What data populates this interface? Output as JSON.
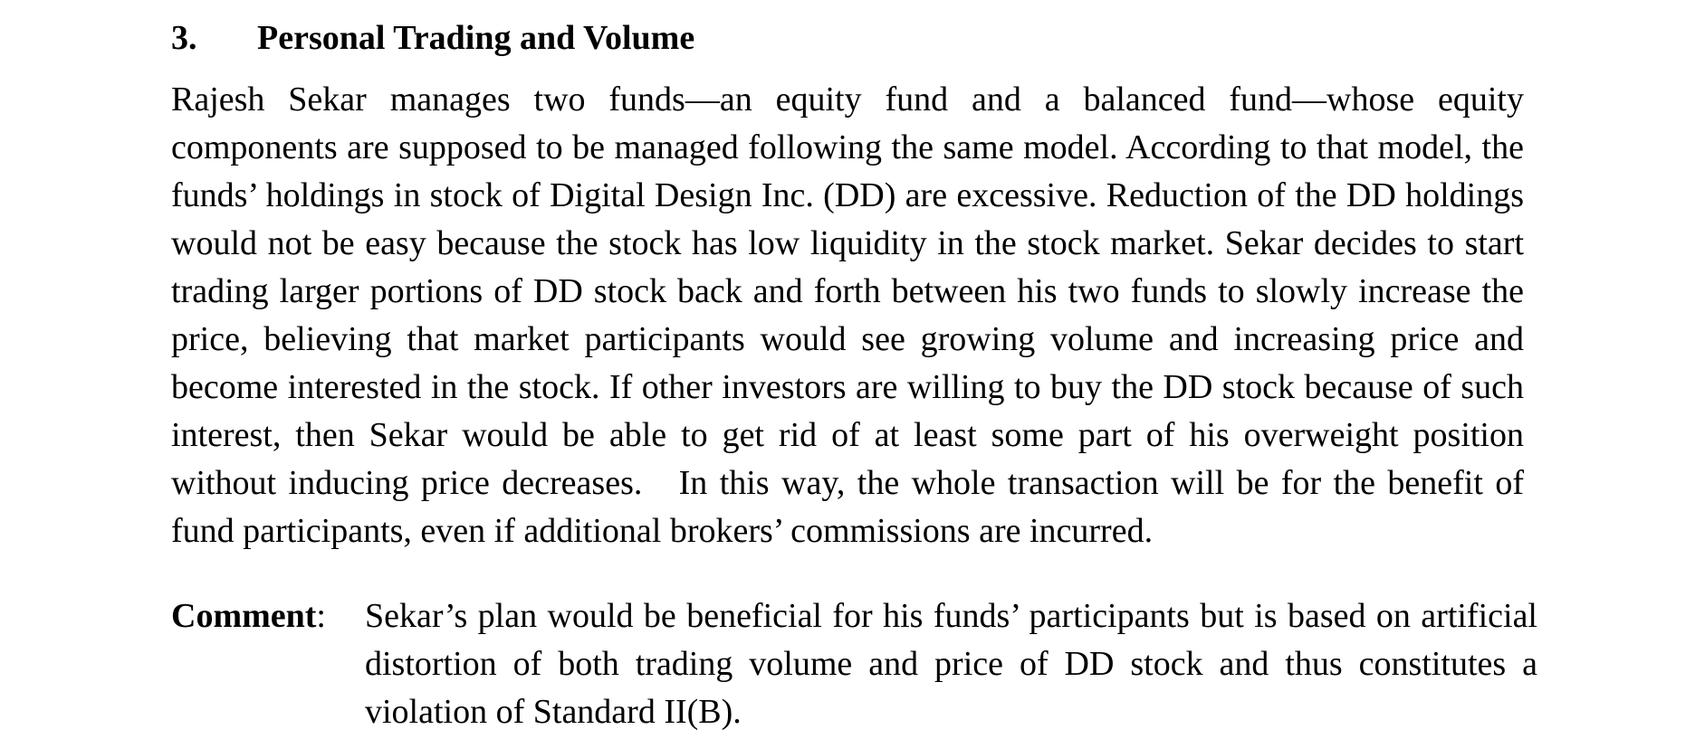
{
  "section": {
    "number": "3.",
    "title": "Personal Trading and Volume"
  },
  "body_paragraph": "Rajesh Sekar manages two funds—an equity fund and a balanced fund—whose equity components are supposed to be managed following the same model. According to that model, the funds’ holdings in stock of Digital Design Inc. (DD) are excessive. Reduction of the DD holdings would not be easy because the stock has low liquidity in the stock market. Sekar decides to start trading larger portions of DD stock back and forth between his two funds to slowly increase the price, believing that market participants would see growing volume and increasing price and become interested in the stock. If other investors are willing to buy the DD stock because of such interest, then Sekar would be able to get rid of at least some part of his overweight position without inducing price decreases.   In this way, the whole transaction will be for the benefit of fund participants, even if additional brokers’ commissions are incurred.",
  "comment": {
    "label": "Comment",
    "separator": ":",
    "text": "Sekar’s plan would be beneficial for his funds’ participants but is based on artificial distortion of both trading volume and price of DD stock and thus constitutes a violation of Standard II(B)."
  }
}
